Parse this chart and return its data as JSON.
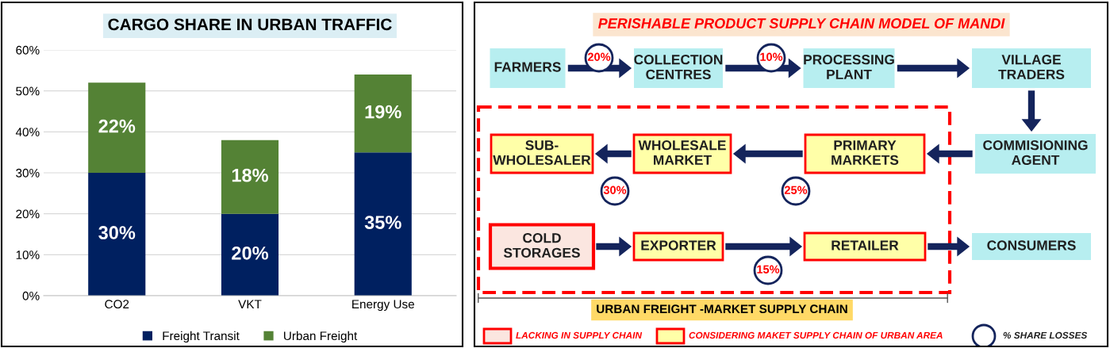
{
  "chart_data": [
    {
      "type": "bar",
      "title": "CARGO SHARE IN URBAN TRAFFIC",
      "stacked": true,
      "categories": [
        "CO2",
        "VKT",
        "Energy Use"
      ],
      "series": [
        {
          "name": "Freight Transit",
          "color": "#002060",
          "values": [
            30,
            20,
            35
          ],
          "value_labels": [
            "30%",
            "20%",
            "35%"
          ]
        },
        {
          "name": "Urban Freight",
          "color": "#548235",
          "values": [
            22,
            18,
            19
          ],
          "value_labels": [
            "22%",
            "18%",
            "19%"
          ]
        }
      ],
      "ylim": [
        0,
        60
      ],
      "yticks": [
        {
          "value": 0,
          "label": "0%"
        },
        {
          "value": 10,
          "label": "10%"
        },
        {
          "value": 20,
          "label": "20%"
        },
        {
          "value": 30,
          "label": "30%"
        },
        {
          "value": 40,
          "label": "40%"
        },
        {
          "value": 50,
          "label": "50%"
        },
        {
          "value": 60,
          "label": "60%"
        }
      ],
      "grid": "y",
      "legend": "bottom"
    },
    {
      "type": "other",
      "title": "PERISHABLE PRODUCT SUPPLY CHAIN MODEL OF MANDI",
      "annotations": [
        "FARMERS",
        "COLLECTION\nCENTRES",
        "PROCESSING\nPLANT",
        "VILLAGE\nTRADERS",
        "COMMISIONING\nAGENT",
        "PRIMARY\nMARKETS",
        "WHOLESALE\nMARKET",
        "SUB-\nWHOLESALER",
        "COLD\nSTORAGES",
        "EXPORTER",
        "RETAILER",
        "CONSUMERS",
        "20%",
        "10%",
        "30%",
        "25%",
        "15%",
        "URBAN FREIGHT -MARKET SUPPLY CHAIN",
        "LACKING IN SUPPLY CHAIN",
        "CONSIDERING MAKET SUPPLY CHAIN OF URBAN AREA",
        "% SHARE LOSSES"
      ]
    }
  ]
}
